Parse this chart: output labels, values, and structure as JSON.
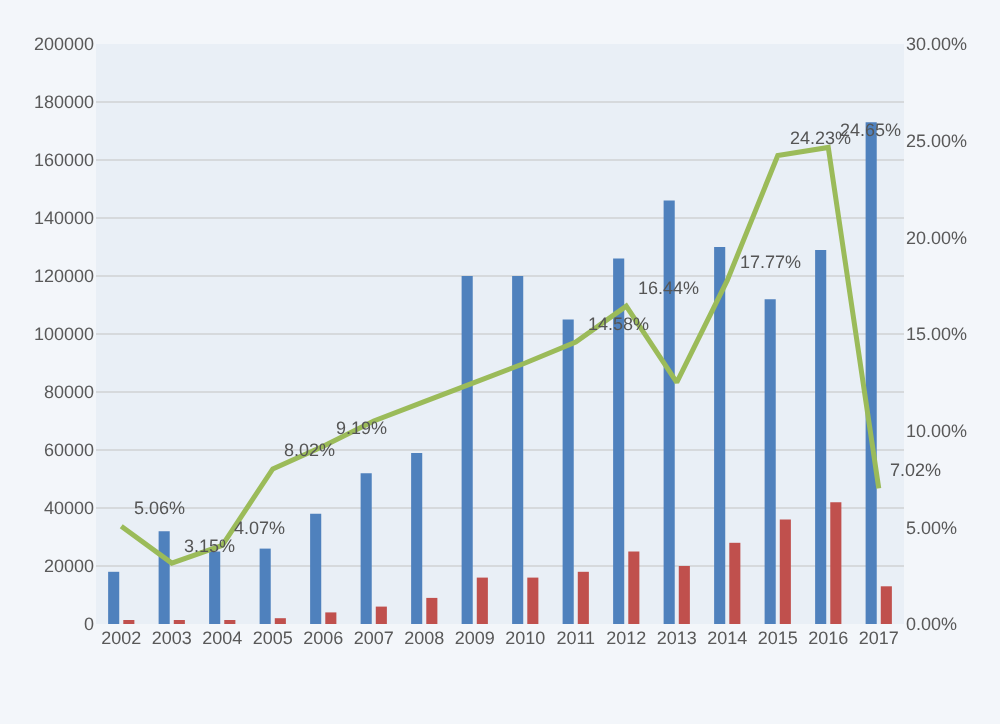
{
  "chart_data": {
    "type": "bar",
    "categories": [
      "2002",
      "2003",
      "2004",
      "2005",
      "2006",
      "2007",
      "2008",
      "2009",
      "2010",
      "2011",
      "2012",
      "2013",
      "2014",
      "2015",
      "2016",
      "2017"
    ],
    "series": [
      {
        "color": "#4f81bd",
        "values": [
          18000,
          32000,
          25000,
          26000,
          38000,
          52000,
          59000,
          120000,
          120000,
          105000,
          126000,
          146000,
          130000,
          112000,
          129000,
          173000
        ]
      },
      {
        "color": "#c0504d",
        "values": [
          1000,
          1000,
          1000,
          2000,
          4000,
          6000,
          9000,
          16000,
          16000,
          18000,
          25000,
          20000,
          28000,
          36000,
          42000,
          13000
        ]
      },
      {
        "type": "line",
        "axis": "y2",
        "color": "#9bbb59",
        "values": [
          5.06,
          3.15,
          4.07,
          8.02,
          9.19,
          10.5,
          11.5,
          12.5,
          13.5,
          14.58,
          16.44,
          12.5,
          17.77,
          24.23,
          24.65,
          7.02
        ],
        "value_labels": [
          "5.06%",
          "3.15%",
          "4.07%",
          "8.02%",
          "9.19%",
          null,
          null,
          null,
          null,
          "14.58%",
          "16.44%",
          null,
          "17.77%",
          "24.23%",
          "24.65%",
          "7.02%"
        ]
      }
    ],
    "ylim": [
      0,
      200000
    ],
    "yticks": [
      0,
      20000,
      40000,
      60000,
      80000,
      100000,
      120000,
      140000,
      160000,
      180000,
      200000
    ],
    "y2lim": [
      0,
      30
    ],
    "y2ticks": [
      {
        "value": 0,
        "label": "0.00%"
      },
      {
        "value": 5,
        "label": "5.00%"
      },
      {
        "value": 10,
        "label": "10.00%"
      },
      {
        "value": 15,
        "label": "15.00%"
      },
      {
        "value": 20,
        "label": "20.00%"
      },
      {
        "value": 25,
        "label": "25.00%"
      },
      {
        "value": 30,
        "label": "30.00%"
      }
    ],
    "grid": "y",
    "marker": "none",
    "line_style": "solid"
  }
}
